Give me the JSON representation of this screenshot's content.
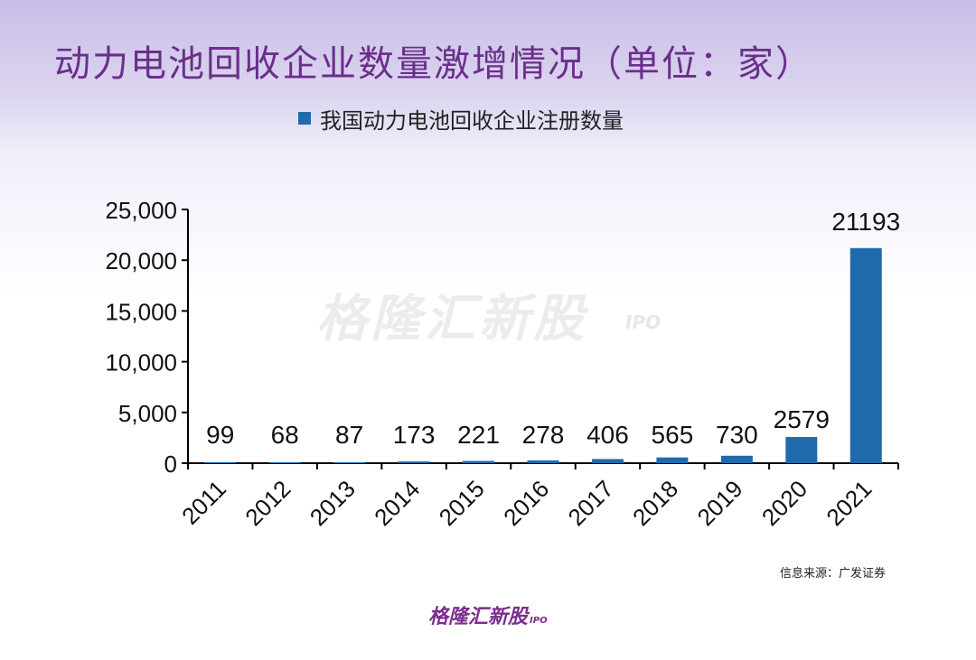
{
  "page": {
    "title": "动力电池回收企业数量激增情况（单位：家）",
    "source": "信息来源：广发证券",
    "watermark": "格隆汇新股",
    "watermark_sub": "IPO",
    "brand": "格隆汇新股",
    "brand_sub": "IPO"
  },
  "colors": {
    "title": "#6a2f8a",
    "bar": "#1f6aad",
    "brand": "#7c2d8f"
  },
  "chart_data": {
    "type": "bar",
    "categories": [
      "2011",
      "2012",
      "2013",
      "2014",
      "2015",
      "2016",
      "2017",
      "2018",
      "2019",
      "2020",
      "2021"
    ],
    "series": [
      {
        "name": "我国动力电池回收企业注册数量",
        "values": [
          99,
          68,
          87,
          173,
          221,
          278,
          406,
          565,
          730,
          2579,
          21193
        ]
      }
    ],
    "data_labels": [
      "99",
      "68",
      "87",
      "173",
      "221",
      "278",
      "406",
      "565",
      "730",
      "2579",
      "21193"
    ],
    "ylim": [
      0,
      25000
    ],
    "yticks": [
      0,
      5000,
      10000,
      15000,
      20000,
      25000
    ],
    "ytick_labels": [
      "0",
      "5,000",
      "10,000",
      "15,000",
      "20,000",
      "25,000"
    ],
    "xlabel": "",
    "ylabel": "",
    "legend_position": "top",
    "grid": false
  }
}
